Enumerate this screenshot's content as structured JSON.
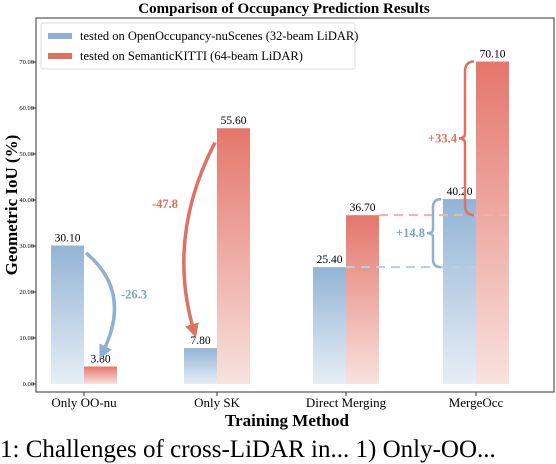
{
  "chart_data": {
    "type": "bar",
    "title": "Comparison of Occupancy Prediction Results",
    "xlabel": "Training Method",
    "ylabel": "Geometric IoU (%)",
    "ylim": [
      0,
      75
    ],
    "yticks": [
      0,
      10,
      20,
      30,
      40,
      50,
      60,
      70
    ],
    "ytick_labels": [
      "0.00",
      "10.00",
      "20.00",
      "30.00",
      "40.00",
      "50.00",
      "60.00",
      "70.00"
    ],
    "grid": false,
    "legend_position": "top-left",
    "categories": [
      "Only OO-nu",
      "Only SK",
      "Direct Merging",
      "MergeOcc"
    ],
    "series": [
      {
        "name": "tested on OpenOccupancy-nuScenes (32-beam LiDAR)",
        "color": "#8fb0d3",
        "values": [
          30.1,
          7.8,
          25.4,
          40.2
        ],
        "labels": [
          "30.10",
          "7.80",
          "25.40",
          "40.20"
        ]
      },
      {
        "name": "tested on SemanticKITTI (64-beam LiDAR)",
        "color": "#e07b6e",
        "values": [
          3.8,
          55.6,
          36.7,
          70.1
        ],
        "labels": [
          "3.80",
          "55.60",
          "36.70",
          "70.10"
        ]
      }
    ],
    "annotations": [
      {
        "text": "-26.3",
        "color": "#7fa3cc"
      },
      {
        "text": "-47.8",
        "color": "#e0705f"
      },
      {
        "text": "+14.8",
        "color": "#7fa3cc"
      },
      {
        "text": "+33.4",
        "color": "#e0705f"
      }
    ]
  },
  "caption": "1: Challenges of cross-LiDAR in... 1) Only-OO..."
}
